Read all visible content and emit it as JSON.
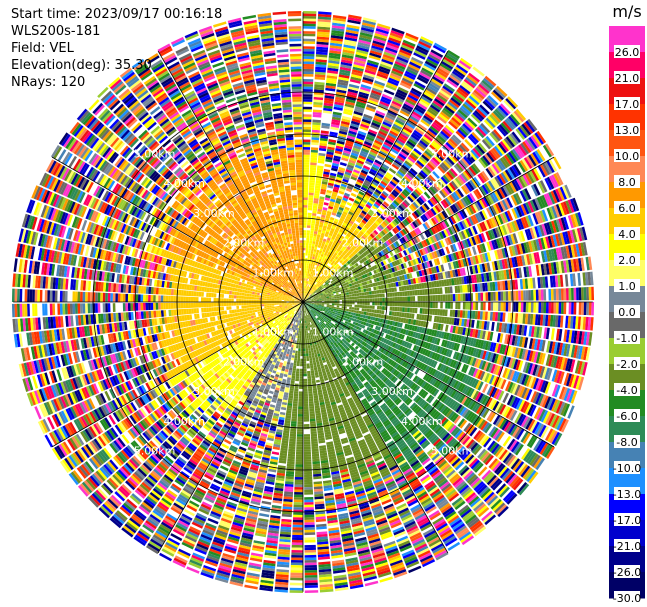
{
  "header": {
    "start_time": "Start time: 2023/09/17 00:16:18",
    "device": "WLS200s-181",
    "field": "Field: VEL",
    "elevation": "Elevation(deg): 35.30",
    "nrays": "NRays: 120"
  },
  "chart_data": {
    "type": "ppi-polar",
    "field": "VEL",
    "unit": "m/s",
    "n_rays": 120,
    "range_rings_km": [
      1.0,
      2.0,
      3.0,
      4.0,
      5.0
    ],
    "range_ring_labels": [
      "1.00km",
      "2.00km",
      "3.00km",
      "4.00km",
      "5.00km"
    ],
    "max_range_km": 6.9,
    "colorbar": {
      "title": "m/s",
      "tick_labels": [
        "26.0",
        "21.0",
        "17.0",
        "13.0",
        "10.0",
        "8.0",
        "6.0",
        "4.0",
        "2.0",
        "1.0",
        "0.0",
        "-1.0",
        "-2.0",
        "-4.0",
        "-6.0",
        "-8.0",
        "-10.0",
        "-13.0",
        "-17.0",
        "-21.0",
        "-26.0",
        "-30.0"
      ],
      "levels": [
        30,
        26,
        21,
        17,
        13,
        10,
        8,
        6,
        4,
        2,
        1,
        0,
        -1,
        -2,
        -4,
        -6,
        -8,
        -10,
        -13,
        -17,
        -21,
        -26,
        -30
      ],
      "colors": [
        "#ff33cc",
        "#ff0066",
        "#ee1111",
        "#ff3300",
        "#ff5511",
        "#ff8855",
        "#ff9900",
        "#ffcc00",
        "#ffff00",
        "#ffff66",
        "#778899",
        "#696969",
        "#9acd32",
        "#6b8e23",
        "#228b22",
        "#2e8b57",
        "#4682b4",
        "#1e90ff",
        "#0000ff",
        "#0000cd",
        "#00008b",
        "#000066"
      ]
    },
    "sectors": [
      {
        "from_deg": -68,
        "to_deg": -28,
        "max_km": 3.4,
        "value_m_s": 6.5
      },
      {
        "from_deg": -28,
        "to_deg": 8,
        "max_km": 3.4,
        "value_m_s": 3.0
      },
      {
        "from_deg": 8,
        "to_deg": 48,
        "max_km": 2.3,
        "value_m_s": 4.5
      },
      {
        "from_deg": 48,
        "to_deg": 80,
        "max_km": 2.0,
        "value_m_s": -2.5
      },
      {
        "from_deg": 80,
        "to_deg": 102,
        "max_km": 3.6,
        "value_m_s": -2.8
      },
      {
        "from_deg": 102,
        "to_deg": 150,
        "max_km": 4.3,
        "value_m_s": -6.0
      },
      {
        "from_deg": 150,
        "to_deg": 190,
        "max_km": 4.1,
        "value_m_s": -3.0
      },
      {
        "from_deg": 190,
        "to_deg": 212,
        "max_km": 2.6,
        "value_m_s": 0.5
      },
      {
        "from_deg": 212,
        "to_deg": 240,
        "max_km": 3.2,
        "value_m_s": 2.5
      },
      {
        "from_deg": 240,
        "to_deg": 292,
        "max_km": 3.3,
        "value_m_s": 5.0
      }
    ],
    "noise_region": "beyond ~3-4 km all velocity bins appear random across the full colour scale"
  }
}
